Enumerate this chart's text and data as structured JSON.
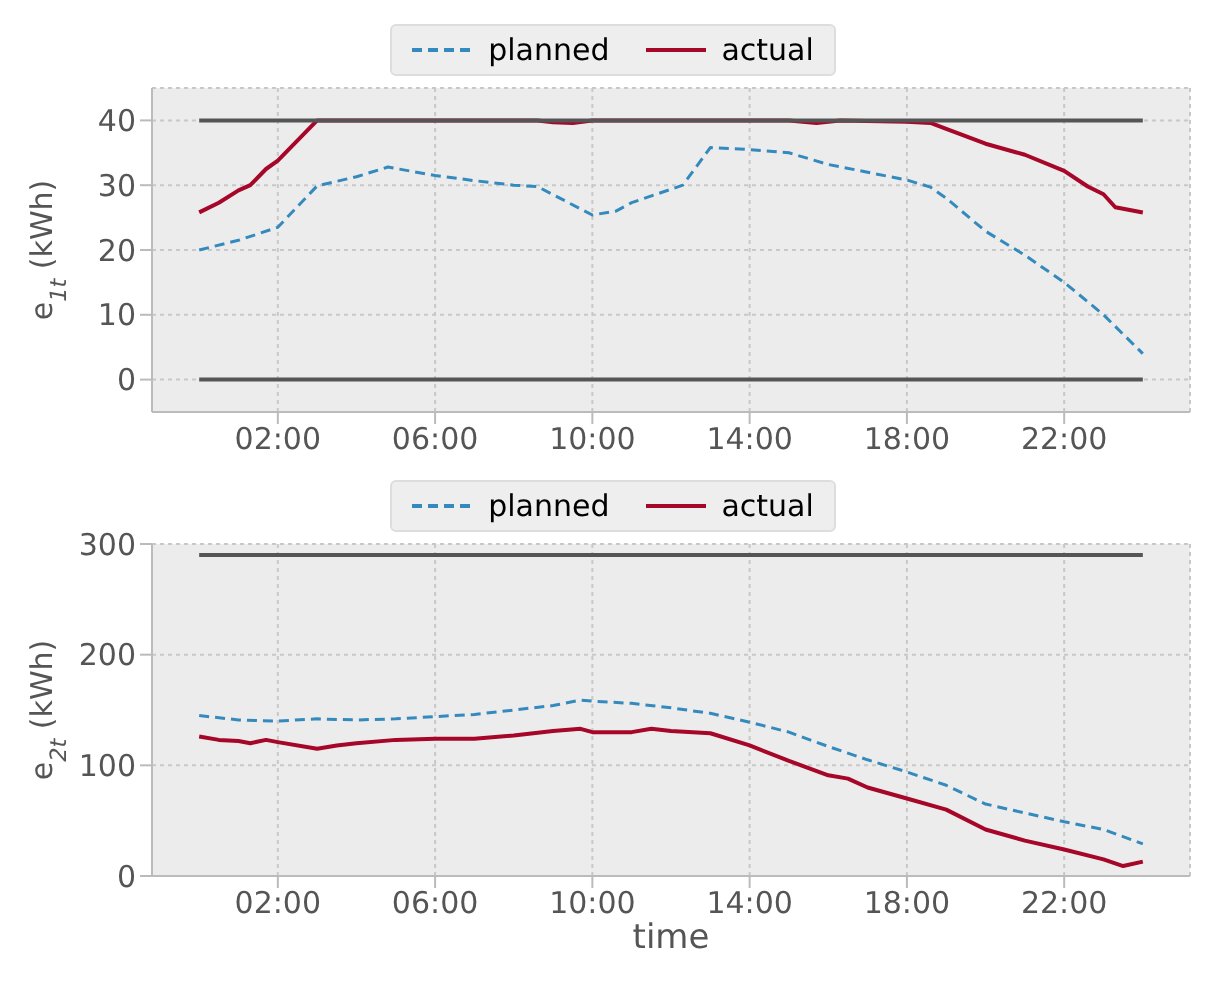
{
  "chart_data": [
    {
      "type": "line",
      "ylabel": "e$_{1t}$ (kWh)",
      "xlim": [
        -1.2,
        25.2
      ],
      "xticks": [
        {
          "value": 2,
          "label": "02:00"
        },
        {
          "value": 6,
          "label": "06:00"
        },
        {
          "value": 10,
          "label": "10:00"
        },
        {
          "value": 14,
          "label": "14:00"
        },
        {
          "value": 18,
          "label": "18:00"
        },
        {
          "value": 22,
          "label": "22:00"
        }
      ],
      "ylim": [
        -5,
        45
      ],
      "yticks": [
        0,
        10,
        20,
        30,
        40
      ],
      "grid": true,
      "legend": "top",
      "series": [
        {
          "name": "planned",
          "color": "#348abd",
          "line_style": "dashed",
          "x": [
            0,
            1,
            2,
            3,
            4,
            4.8,
            6,
            7,
            8,
            8.6,
            10,
            10.6,
            11,
            12.3,
            13,
            14,
            15,
            16,
            17,
            18,
            18.6,
            19,
            20,
            21,
            22,
            23,
            24
          ],
          "values": [
            20,
            21.5,
            23.5,
            29.9,
            31.3,
            32.8,
            31.5,
            30.7,
            30,
            29.8,
            25.4,
            26,
            27.3,
            30,
            35.8,
            35.5,
            35,
            33.2,
            32,
            30.8,
            29.7,
            28,
            22.9,
            19.2,
            15,
            10,
            4
          ]
        },
        {
          "name": "actual",
          "color": "#a60628",
          "line_style": "solid",
          "x": [
            0,
            0.5,
            1,
            1.3,
            1.7,
            2,
            3,
            8.6,
            9,
            9.5,
            10,
            15,
            15.7,
            16.3,
            18,
            18.6,
            19,
            20,
            21,
            22,
            22.6,
            23,
            23.3,
            24
          ],
          "values": [
            25.8,
            27.3,
            29.2,
            30,
            32.5,
            33.8,
            40,
            40,
            39.7,
            39.6,
            40,
            40,
            39.6,
            40,
            39.8,
            39.6,
            38.7,
            36.4,
            34.7,
            32.2,
            29.8,
            28.6,
            26.6,
            25.8
          ]
        },
        {
          "color": "#555555",
          "line_style": "solid",
          "x": [
            0,
            24
          ],
          "values": [
            40,
            40
          ]
        },
        {
          "color": "#555555",
          "line_style": "solid",
          "x": [
            0,
            24
          ],
          "values": [
            0,
            0
          ]
        }
      ]
    },
    {
      "type": "line",
      "xlabel": "time",
      "ylabel": "e$_{2t}$ (kWh)",
      "xlim": [
        -1.2,
        25.2
      ],
      "xticks": [
        {
          "value": 2,
          "label": "02:00"
        },
        {
          "value": 6,
          "label": "06:00"
        },
        {
          "value": 10,
          "label": "10:00"
        },
        {
          "value": 14,
          "label": "14:00"
        },
        {
          "value": 18,
          "label": "18:00"
        },
        {
          "value": 22,
          "label": "22:00"
        }
      ],
      "ylim": [
        0,
        300
      ],
      "yticks": [
        0,
        100,
        200,
        300
      ],
      "grid": true,
      "legend": "top",
      "series": [
        {
          "name": "planned",
          "color": "#348abd",
          "line_style": "dashed",
          "x": [
            0,
            1,
            2,
            3,
            4,
            5,
            6,
            7,
            8,
            9,
            9.7,
            10,
            11,
            12,
            13,
            14,
            15,
            16,
            17,
            18,
            19,
            20,
            21,
            22,
            23,
            24
          ],
          "values": [
            145,
            141,
            140,
            142,
            141,
            142,
            144,
            146,
            150,
            154,
            159,
            158,
            156,
            152,
            147,
            139,
            130,
            117,
            105,
            94,
            82,
            65,
            57,
            49,
            42,
            29
          ]
        },
        {
          "name": "actual",
          "color": "#a60628",
          "line_style": "solid",
          "x": [
            0,
            0.5,
            1,
            1.3,
            1.7,
            2,
            3,
            3.5,
            4,
            5,
            6,
            7,
            8,
            9,
            9.7,
            10,
            11,
            11.5,
            12,
            13,
            14,
            15,
            16,
            16.5,
            17,
            18,
            19,
            20,
            21,
            22,
            23,
            23.5,
            24
          ],
          "values": [
            126,
            123,
            122,
            120,
            123,
            121,
            115,
            118,
            120,
            123,
            124,
            124,
            127,
            131,
            133,
            130,
            130,
            133,
            131,
            129,
            118,
            104,
            91,
            88,
            80,
            70,
            60,
            42,
            32,
            24,
            15,
            9,
            13
          ]
        },
        {
          "color": "#555555",
          "line_style": "solid",
          "x": [
            0,
            24
          ],
          "values": [
            290,
            290
          ]
        }
      ]
    }
  ]
}
